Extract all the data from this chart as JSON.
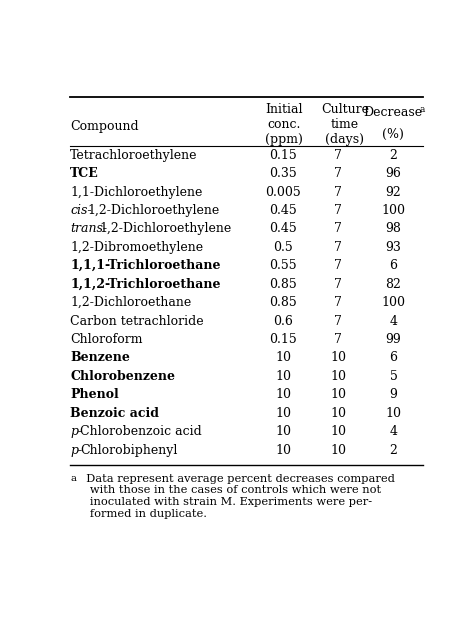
{
  "header_col0": "Compound",
  "header_col1": "Initial\nconc.\n(ppm)",
  "header_col2": "Culture\ntime\n(days)",
  "header_col3_line1": "Decrease",
  "header_col3_line2": "(%)",
  "rows": [
    [
      "Tetrachloroethylene",
      "0.15",
      "7",
      "2"
    ],
    [
      "TCE",
      "0.35",
      "7",
      "96"
    ],
    [
      "1,1-Dichloroethylene",
      "0.005",
      "7",
      "92"
    ],
    [
      "cis-1,2-Dichloroethylene",
      "0.45",
      "7",
      "100"
    ],
    [
      "trans-1,2-Dichloroethylene",
      "0.45",
      "7",
      "98"
    ],
    [
      "1,2-Dibromoethylene",
      "0.5",
      "7",
      "93"
    ],
    [
      "1,1,1-Trichloroethane",
      "0.55",
      "7",
      "6"
    ],
    [
      "1,1,2-Trichloroethane",
      "0.85",
      "7",
      "82"
    ],
    [
      "1,2-Dichloroethane",
      "0.85",
      "7",
      "100"
    ],
    [
      "Carbon tetrachloride",
      "0.6",
      "7",
      "4"
    ],
    [
      "Chloroform",
      "0.15",
      "7",
      "99"
    ],
    [
      "Benzene",
      "10",
      "10",
      "6"
    ],
    [
      "Chlorobenzene",
      "10",
      "10",
      "5"
    ],
    [
      "Phenol",
      "10",
      "10",
      "9"
    ],
    [
      "Benzoic acid",
      "10",
      "10",
      "10"
    ],
    [
      "p-Chlorobenzoic acid",
      "10",
      "10",
      "4"
    ],
    [
      "p-Chlorobiphenyl",
      "10",
      "10",
      "2"
    ]
  ],
  "font_size": 9.0,
  "header_font_size": 9.0,
  "footnote_font_size": 8.2,
  "bg_color": "#ffffff",
  "text_color": "#000000",
  "footnote_superscript": "a",
  "footnote_body": "  Data represent average percent decreases compared\n   with those in the cases of controls which were not\n   inoculated with strain M. Experiments were per-\n   formed in duplicate."
}
